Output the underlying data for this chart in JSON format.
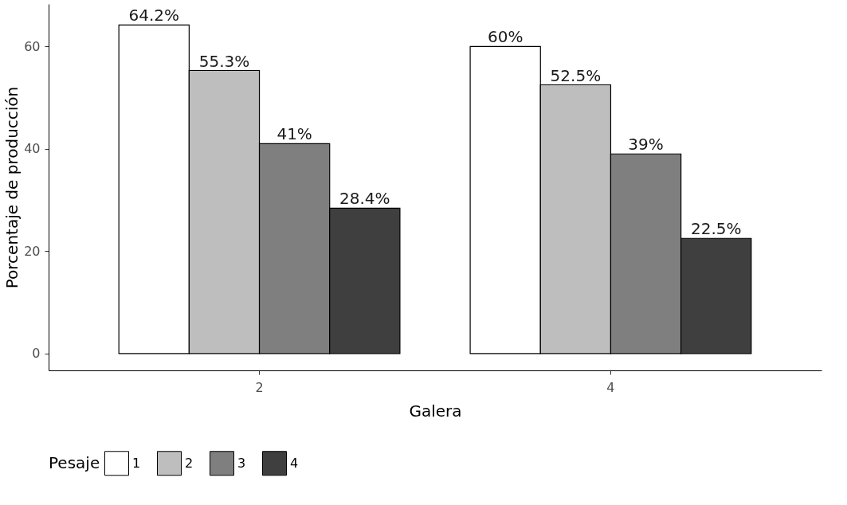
{
  "chart_data": {
    "type": "bar",
    "xlabel": "Galera",
    "ylabel": "Porcentaje de producción",
    "legend_title": "Pesaje",
    "legend": "bottom",
    "grid": false,
    "categories": [
      "2",
      "4"
    ],
    "ylim": [
      -3.3,
      68.3
    ],
    "yticks": [
      0,
      20,
      40,
      60
    ],
    "series": [
      {
        "name": "1",
        "color": "#ffffff",
        "values": [
          64.2,
          60
        ],
        "value_labels": [
          "64.2%",
          "60%"
        ]
      },
      {
        "name": "2",
        "color": "#bebebe",
        "values": [
          55.3,
          52.5
        ],
        "value_labels": [
          "55.3%",
          "52.5%"
        ]
      },
      {
        "name": "3",
        "color": "#7f7f7f",
        "values": [
          41,
          39
        ],
        "value_labels": [
          "41%",
          "39%"
        ]
      },
      {
        "name": "4",
        "color": "#3f3f3f",
        "values": [
          28.4,
          22.5
        ],
        "value_labels": [
          "28.4%",
          "22.5%"
        ]
      }
    ]
  }
}
